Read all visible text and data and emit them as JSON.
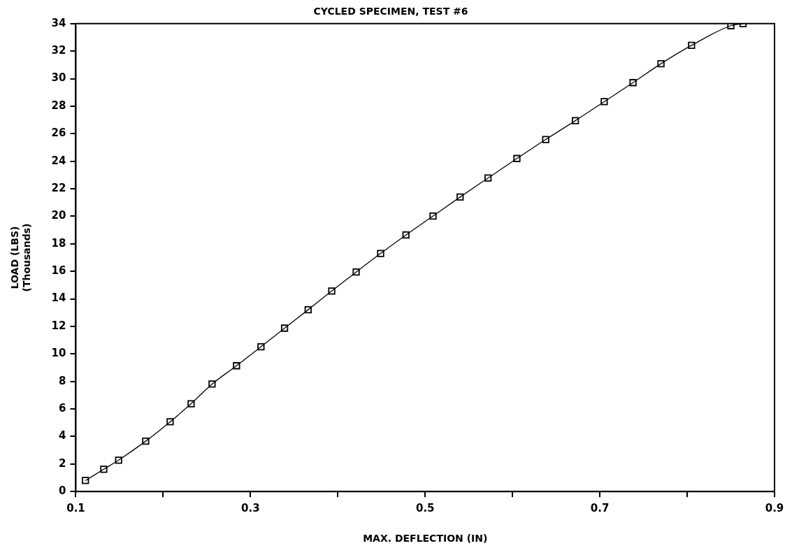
{
  "chart_data": {
    "type": "line",
    "title": "CYCLED SPECIMEN, TEST #6",
    "xlabel": "MAX. DEFLECTION (IN)",
    "ylabel": "LOAD (LBS)\n(Thousands)",
    "x": [
      0.111,
      0.132,
      0.149,
      0.18,
      0.208,
      0.232,
      0.256,
      0.284,
      0.312,
      0.339,
      0.366,
      0.393,
      0.421,
      0.449,
      0.478,
      0.509,
      0.54,
      0.572,
      0.605,
      0.638,
      0.672,
      0.705,
      0.738,
      0.77,
      0.805,
      0.85,
      0.864
    ],
    "series": [
      {
        "color": "#000000",
        "values": [
          0.8,
          1.62,
          2.28,
          3.66,
          5.07,
          6.38,
          7.81,
          9.14,
          10.52,
          11.87,
          13.21,
          14.57,
          15.95,
          17.3,
          18.64,
          20.02,
          21.4,
          22.78,
          24.2,
          25.58,
          26.95,
          28.33,
          29.71,
          31.09,
          32.42,
          33.85,
          34.0
        ]
      }
    ],
    "xlim": [
      0.1,
      0.9
    ],
    "xticks": [
      0.1,
      {
        "value": 0.2,
        "label": null
      },
      0.3,
      {
        "value": 0.4,
        "label": null
      },
      0.5,
      {
        "value": 0.6,
        "label": null
      },
      0.7,
      {
        "value": 0.8,
        "label": null
      },
      0.9
    ],
    "ylim": [
      0,
      34
    ],
    "yticks": [
      0,
      2,
      4,
      6,
      8,
      10,
      12,
      14,
      16,
      18,
      20,
      22,
      24,
      26,
      28,
      30,
      32,
      34
    ],
    "grid": false,
    "legend": false,
    "marker": "square",
    "line_style": "solid"
  }
}
